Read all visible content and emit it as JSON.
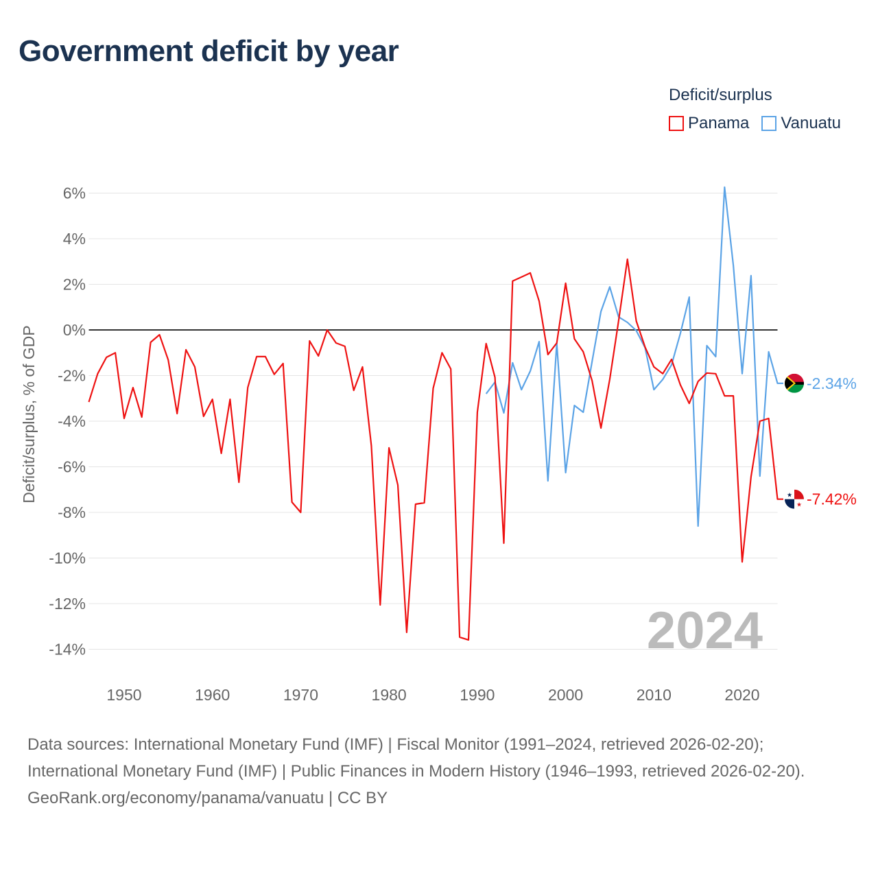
{
  "title": "Government deficit by year",
  "legend": {
    "title": "Deficit/surplus",
    "items": [
      {
        "name": "Panama",
        "color": "#ee1111"
      },
      {
        "name": "Vanuatu",
        "color": "#5ba3e6"
      }
    ]
  },
  "chart_data": {
    "type": "line",
    "title": "Government deficit by year",
    "xlabel": "",
    "ylabel": "Deficit/surplus, % of GDP",
    "xlim": [
      1946,
      2024
    ],
    "ylim": [
      -15,
      6.5
    ],
    "x_ticks": [
      1950,
      1960,
      1970,
      1980,
      1990,
      2000,
      2010,
      2020
    ],
    "y_ticks": [
      6,
      4,
      2,
      0,
      -2,
      -4,
      -6,
      -8,
      -10,
      -12,
      -14
    ],
    "y_tick_labels": [
      "6%",
      "4%",
      "2%",
      "0%",
      "-2%",
      "-4%",
      "-6%",
      "-8%",
      "-10%",
      "-12%",
      "-14%"
    ],
    "grid": true,
    "current_year": "2024",
    "series": [
      {
        "name": "Panama",
        "color": "#ee1111",
        "end_label": "-7.42%",
        "start_year": 1946,
        "values": [
          -3.16,
          -1.92,
          -1.2,
          -1.0,
          -3.88,
          -2.53,
          -3.82,
          -0.54,
          -0.21,
          -1.32,
          -3.67,
          -0.87,
          -1.62,
          -3.79,
          -3.04,
          -5.41,
          -3.04,
          -6.68,
          -2.53,
          -1.17,
          -1.17,
          -1.95,
          -1.47,
          -7.55,
          -8.0,
          -0.48,
          -1.14,
          0.0,
          -0.57,
          -0.72,
          -2.65,
          -1.62,
          -5.08,
          -12.06,
          -5.17,
          -6.8,
          -13.26,
          -7.64,
          -7.58,
          -2.56,
          -1.0,
          -1.71,
          -13.47,
          -13.59,
          -3.61,
          -0.6,
          -2.08,
          -9.35,
          2.14,
          2.32,
          2.5,
          1.26,
          -1.08,
          -0.57,
          2.05,
          -0.39,
          -0.96,
          -2.23,
          -4.3,
          -2.17,
          0.39,
          3.1,
          0.39,
          -0.75,
          -1.62,
          -1.92,
          -1.29,
          -2.41,
          -3.22,
          -2.26,
          -1.89,
          -1.92,
          -2.89,
          -2.89,
          -10.17,
          -6.44,
          -4.0,
          -3.88,
          -7.42
        ]
      },
      {
        "name": "Vanuatu",
        "color": "#5ba3e6",
        "end_label": "-2.34%",
        "start_year": 1991,
        "values": [
          -2.8,
          -2.29,
          -3.64,
          -1.44,
          -2.62,
          -1.8,
          -0.51,
          -6.62,
          -0.57,
          -6.26,
          -3.31,
          -3.61,
          -1.38,
          0.81,
          1.89,
          0.57,
          0.33,
          -0.03,
          -0.78,
          -2.62,
          -2.17,
          -1.53,
          -0.15,
          1.44,
          -8.6,
          -0.69,
          -1.17,
          6.26,
          2.83,
          -1.92,
          2.38,
          -6.41,
          -0.96,
          -2.34
        ]
      }
    ]
  },
  "footer": {
    "sources": "Data sources: International Monetary Fund (IMF) | Fiscal Monitor (1991–2024, retrieved 2026-02-20); International Monetary Fund (IMF) | Public Finances in Modern History (1946–1993, retrieved 2026-02-20).",
    "credit": "GeoRank.org/economy/panama/vanuatu | CC BY"
  }
}
